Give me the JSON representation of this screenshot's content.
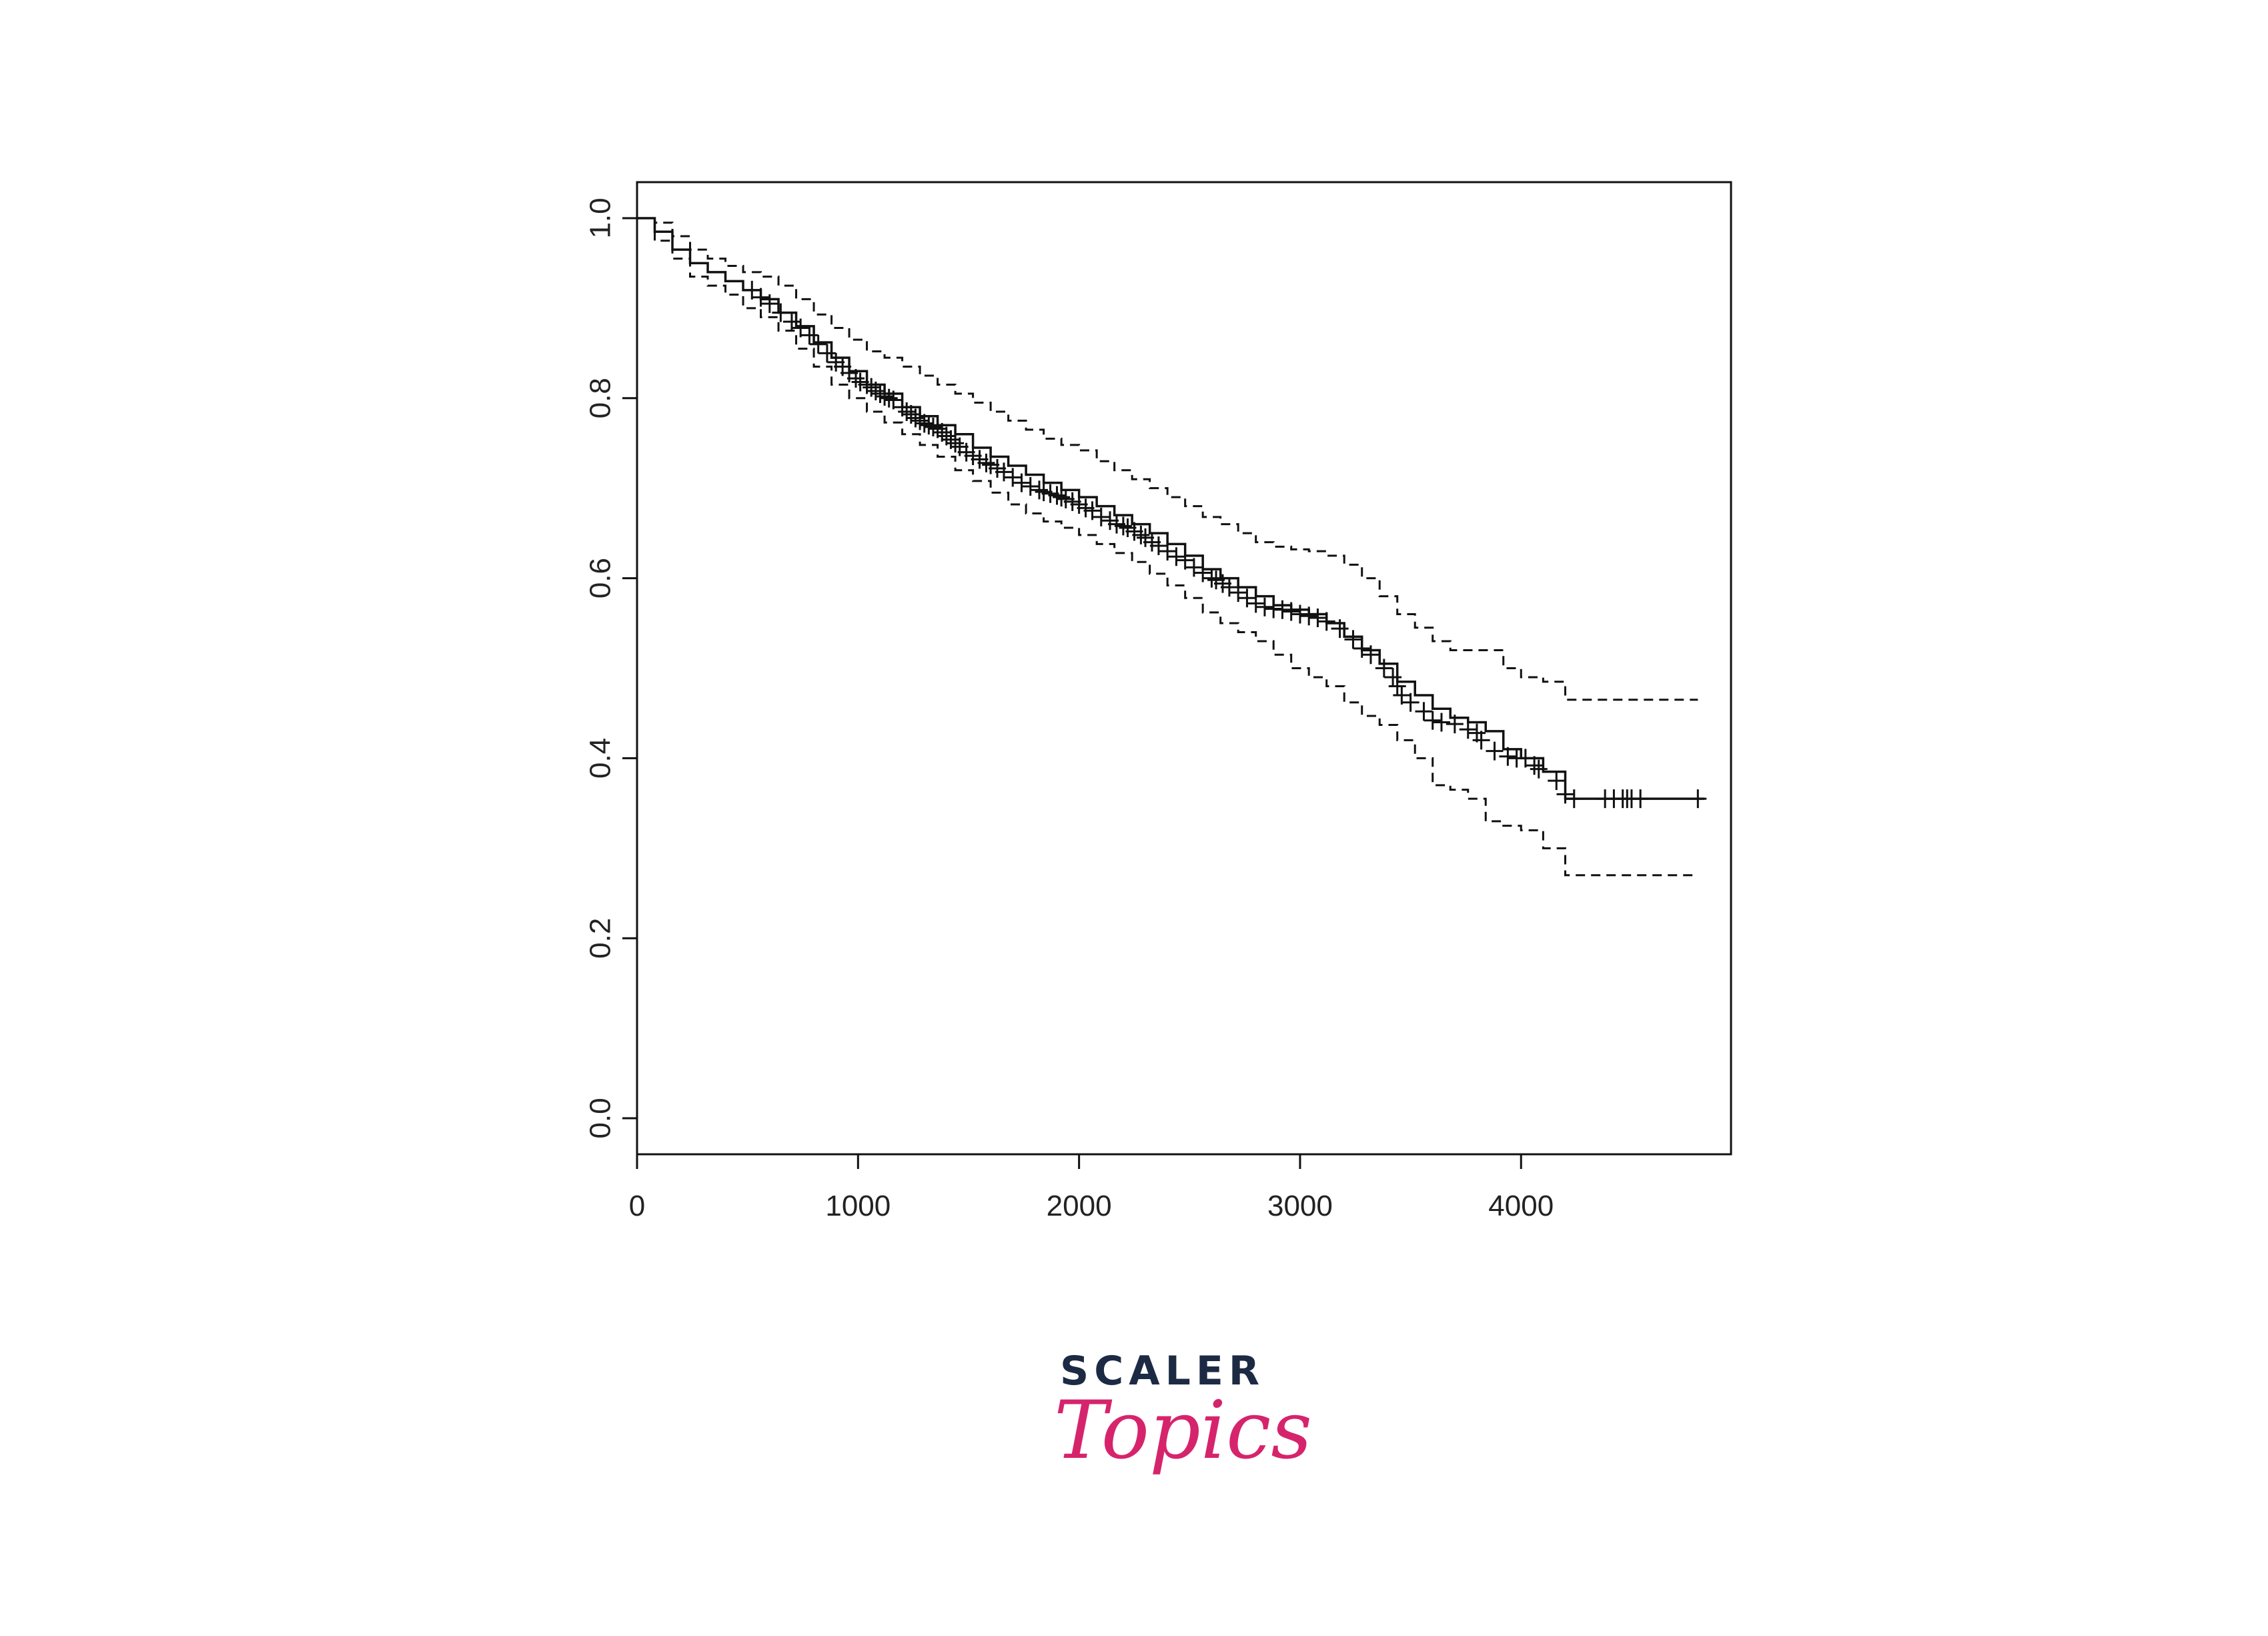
{
  "chart_data": {
    "type": "line",
    "title": "",
    "xlabel": "",
    "ylabel": "",
    "xlim": [
      0,
      4950
    ],
    "ylim": [
      -0.04,
      1.04
    ],
    "x_ticks": [
      "0",
      "1000",
      "2000",
      "3000",
      "4000"
    ],
    "y_ticks": [
      "0.0",
      "0.2",
      "0.4",
      "0.6",
      "0.8",
      "1.0"
    ],
    "x_tick_values": [
      0,
      1000,
      2000,
      3000,
      4000
    ],
    "y_tick_values": [
      0.0,
      0.2,
      0.4,
      0.6,
      0.8,
      1.0
    ],
    "grid": false,
    "legend": "none",
    "series": [
      {
        "role": "estimate",
        "style": "solid",
        "step": true,
        "x": [
          0,
          80,
          160,
          240,
          320,
          400,
          480,
          560,
          640,
          720,
          800,
          880,
          960,
          1040,
          1120,
          1200,
          1280,
          1360,
          1440,
          1520,
          1600,
          1680,
          1760,
          1840,
          1920,
          2000,
          2080,
          2160,
          2240,
          2320,
          2400,
          2480,
          2560,
          2640,
          2720,
          2800,
          2880,
          2960,
          3040,
          3120,
          3200,
          3280,
          3360,
          3440,
          3520,
          3600,
          3680,
          3760,
          3840,
          3920,
          4000,
          4100,
          4200,
          4300,
          4400,
          4500,
          4600,
          4700,
          4800,
          4830
        ],
        "y": [
          1.0,
          0.985,
          0.965,
          0.95,
          0.94,
          0.93,
          0.92,
          0.91,
          0.895,
          0.88,
          0.862,
          0.845,
          0.83,
          0.815,
          0.805,
          0.79,
          0.78,
          0.77,
          0.76,
          0.745,
          0.735,
          0.725,
          0.715,
          0.706,
          0.698,
          0.69,
          0.68,
          0.67,
          0.66,
          0.65,
          0.638,
          0.625,
          0.61,
          0.6,
          0.59,
          0.58,
          0.57,
          0.565,
          0.56,
          0.55,
          0.535,
          0.52,
          0.505,
          0.485,
          0.47,
          0.455,
          0.445,
          0.44,
          0.43,
          0.41,
          0.4,
          0.385,
          0.355,
          0.355,
          0.355,
          0.355,
          0.355,
          0.355,
          0.355,
          0.355
        ]
      },
      {
        "role": "upper confidence bound",
        "style": "dashed",
        "step": true,
        "x": [
          0,
          80,
          160,
          240,
          320,
          400,
          480,
          560,
          640,
          720,
          800,
          880,
          960,
          1040,
          1120,
          1200,
          1280,
          1360,
          1440,
          1520,
          1600,
          1680,
          1760,
          1840,
          1920,
          2000,
          2080,
          2160,
          2240,
          2320,
          2400,
          2480,
          2560,
          2640,
          2720,
          2800,
          2880,
          2960,
          3040,
          3120,
          3200,
          3280,
          3360,
          3440,
          3520,
          3600,
          3680,
          3760,
          3840,
          3920,
          4000,
          4100,
          4200,
          4300,
          4400,
          4500,
          4600,
          4700,
          4800
        ],
        "y": [
          1.0,
          0.995,
          0.98,
          0.965,
          0.955,
          0.947,
          0.94,
          0.935,
          0.925,
          0.91,
          0.893,
          0.878,
          0.865,
          0.852,
          0.845,
          0.835,
          0.825,
          0.815,
          0.805,
          0.795,
          0.785,
          0.775,
          0.765,
          0.755,
          0.748,
          0.742,
          0.73,
          0.72,
          0.71,
          0.7,
          0.69,
          0.68,
          0.668,
          0.66,
          0.65,
          0.64,
          0.635,
          0.632,
          0.63,
          0.625,
          0.615,
          0.6,
          0.58,
          0.56,
          0.545,
          0.53,
          0.52,
          0.52,
          0.52,
          0.5,
          0.49,
          0.485,
          0.465,
          0.465,
          0.465,
          0.465,
          0.465,
          0.465,
          0.465
        ]
      },
      {
        "role": "lower confidence bound",
        "style": "dashed",
        "step": true,
        "x": [
          0,
          80,
          160,
          240,
          320,
          400,
          480,
          560,
          640,
          720,
          800,
          880,
          960,
          1040,
          1120,
          1200,
          1280,
          1360,
          1440,
          1520,
          1600,
          1680,
          1760,
          1840,
          1920,
          2000,
          2080,
          2160,
          2240,
          2320,
          2400,
          2480,
          2560,
          2640,
          2720,
          2800,
          2880,
          2960,
          3040,
          3120,
          3200,
          3280,
          3360,
          3440,
          3520,
          3600,
          3680,
          3760,
          3840,
          3920,
          4000,
          4100,
          4200,
          4300,
          4400,
          4500,
          4600,
          4700,
          4800
        ],
        "y": [
          1.0,
          0.975,
          0.955,
          0.935,
          0.925,
          0.915,
          0.9,
          0.89,
          0.875,
          0.855,
          0.835,
          0.815,
          0.8,
          0.785,
          0.773,
          0.76,
          0.748,
          0.735,
          0.72,
          0.708,
          0.695,
          0.682,
          0.672,
          0.663,
          0.656,
          0.648,
          0.638,
          0.628,
          0.618,
          0.605,
          0.592,
          0.578,
          0.562,
          0.55,
          0.54,
          0.53,
          0.515,
          0.5,
          0.49,
          0.48,
          0.462,
          0.447,
          0.437,
          0.42,
          0.4,
          0.37,
          0.365,
          0.355,
          0.33,
          0.325,
          0.32,
          0.3,
          0.27,
          0.27,
          0.27,
          0.27,
          0.27,
          0.27,
          0.27
        ]
      }
    ],
    "censor_marks": {
      "x": [
        520,
        560,
        600,
        650,
        700,
        740,
        780,
        820,
        860,
        900,
        930,
        960,
        990,
        1010,
        1040,
        1060,
        1080,
        1100,
        1120,
        1140,
        1160,
        1200,
        1220,
        1240,
        1260,
        1280,
        1300,
        1320,
        1340,
        1360,
        1380,
        1400,
        1420,
        1440,
        1460,
        1490,
        1520,
        1550,
        1580,
        1600,
        1630,
        1660,
        1700,
        1740,
        1780,
        1820,
        1840,
        1870,
        1900,
        1920,
        1940,
        1970,
        2000,
        2030,
        2060,
        2100,
        2140,
        2170,
        2200,
        2220,
        2250,
        2280,
        2300,
        2330,
        2360,
        2400,
        2440,
        2480,
        2520,
        2560,
        2600,
        2620,
        2650,
        2680,
        2720,
        2760,
        2800,
        2840,
        2880,
        2920,
        2960,
        3000,
        3040,
        3080,
        3120,
        3180,
        3240,
        3280,
        3320,
        3380,
        3420,
        3440,
        3460,
        3500,
        3560,
        3600,
        3640,
        3700,
        3760,
        3800,
        3820,
        3880,
        3940,
        3980,
        4020,
        4060,
        4080,
        4160,
        4200,
        4240,
        4380,
        4420,
        4460,
        4480,
        4500,
        4540,
        4800
      ],
      "y": [
        0.92,
        0.912,
        0.905,
        0.895,
        0.885,
        0.878,
        0.87,
        0.86,
        0.85,
        0.84,
        0.835,
        0.828,
        0.822,
        0.818,
        0.815,
        0.812,
        0.808,
        0.805,
        0.802,
        0.8,
        0.798,
        0.79,
        0.785,
        0.782,
        0.778,
        0.775,
        0.772,
        0.77,
        0.768,
        0.766,
        0.762,
        0.758,
        0.754,
        0.75,
        0.746,
        0.74,
        0.736,
        0.732,
        0.728,
        0.726,
        0.722,
        0.718,
        0.712,
        0.706,
        0.702,
        0.698,
        0.696,
        0.694,
        0.692,
        0.69,
        0.688,
        0.685,
        0.682,
        0.678,
        0.675,
        0.668,
        0.664,
        0.66,
        0.658,
        0.656,
        0.652,
        0.648,
        0.645,
        0.64,
        0.636,
        0.63,
        0.624,
        0.62,
        0.612,
        0.606,
        0.6,
        0.598,
        0.594,
        0.59,
        0.584,
        0.578,
        0.572,
        0.568,
        0.566,
        0.565,
        0.563,
        0.56,
        0.558,
        0.556,
        0.552,
        0.544,
        0.532,
        0.522,
        0.515,
        0.5,
        0.49,
        0.48,
        0.47,
        0.462,
        0.452,
        0.442,
        0.44,
        0.438,
        0.432,
        0.428,
        0.42,
        0.408,
        0.402,
        0.4,
        0.4,
        0.392,
        0.388,
        0.375,
        0.36,
        0.355,
        0.355,
        0.355,
        0.355,
        0.355,
        0.355,
        0.355,
        0.355
      ]
    }
  },
  "logo": {
    "line1": "SCALER",
    "line2": "Topics",
    "colors": {
      "line1": "#1c2a44",
      "line2": "#d6246c"
    }
  }
}
